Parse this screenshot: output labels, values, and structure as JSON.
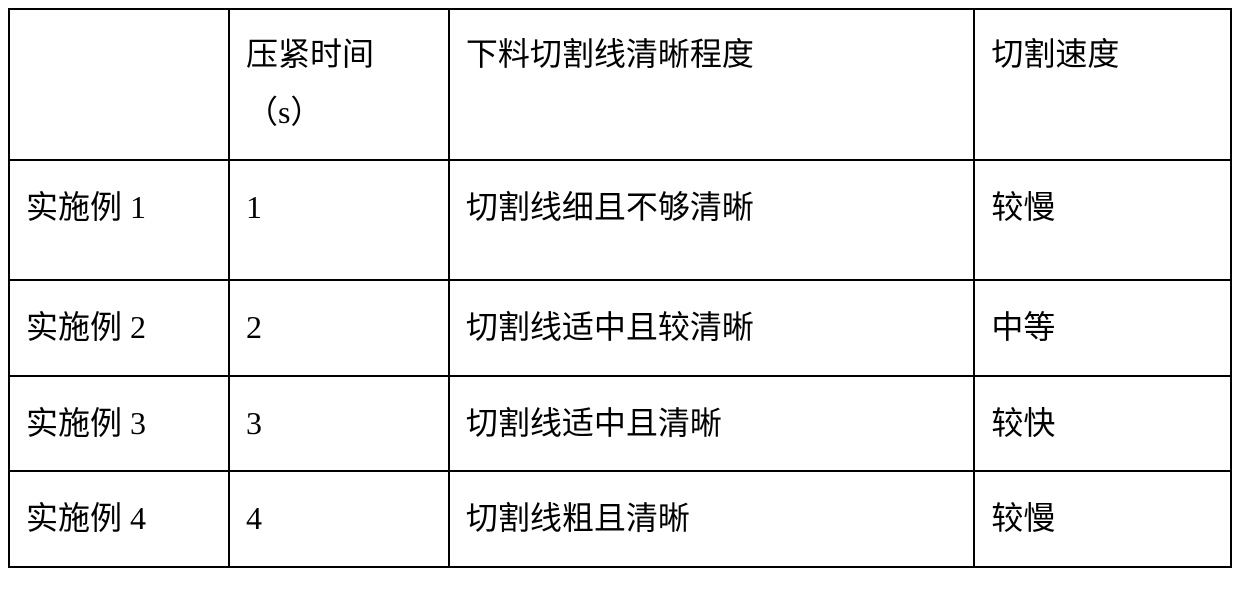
{
  "table": {
    "columns": [
      {
        "header": "",
        "width_pct": 18
      },
      {
        "header": "压紧时间（s）",
        "width_pct": 18
      },
      {
        "header": "下料切割线清晰程度",
        "width_pct": 43
      },
      {
        "header": "切割速度",
        "width_pct": 21
      }
    ],
    "rows": [
      {
        "cells": [
          "实施例 1",
          "1",
          "切割线细且不够清晰",
          "较慢"
        ],
        "tall": true
      },
      {
        "cells": [
          "实施例 2",
          "2",
          "切割线适中且较清晰",
          "中等"
        ],
        "tall": false
      },
      {
        "cells": [
          "实施例 3",
          "3",
          "切割线适中且清晰",
          "较快"
        ],
        "tall": false
      },
      {
        "cells": [
          "实施例 4",
          "4",
          "切割线粗且清晰",
          "较慢"
        ],
        "tall": false
      }
    ],
    "border_color": "#000000",
    "background_color": "#ffffff",
    "text_color": "#000000",
    "font_size": 32
  }
}
